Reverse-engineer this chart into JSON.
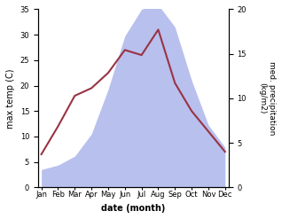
{
  "months": [
    "Jan",
    "Feb",
    "Mar",
    "Apr",
    "May",
    "Jun",
    "Jul",
    "Aug",
    "Sep",
    "Oct",
    "Nov",
    "Dec"
  ],
  "month_positions": [
    0,
    1,
    2,
    3,
    4,
    5,
    6,
    7,
    8,
    9,
    10,
    11
  ],
  "precipitation": [
    2.0,
    2.5,
    3.5,
    6.0,
    11.0,
    17.0,
    20.0,
    20.5,
    18.0,
    12.0,
    7.0,
    4.5
  ],
  "temperature": [
    6.5,
    12.0,
    18.0,
    19.5,
    22.5,
    27.0,
    26.0,
    31.0,
    20.5,
    15.0,
    11.0,
    7.0
  ],
  "temp_color": "#993344",
  "precip_fill_color": "#b8c0ee",
  "ylabel_left": "max temp (C)",
  "ylabel_right": "med. precipitation\n(kg/m2)",
  "xlabel": "date (month)",
  "ylim_left": [
    0,
    35
  ],
  "ylim_right": [
    0,
    20
  ],
  "yticks_left": [
    0,
    5,
    10,
    15,
    20,
    25,
    30,
    35
  ],
  "yticks_right": [
    0,
    5,
    10,
    15,
    20
  ]
}
